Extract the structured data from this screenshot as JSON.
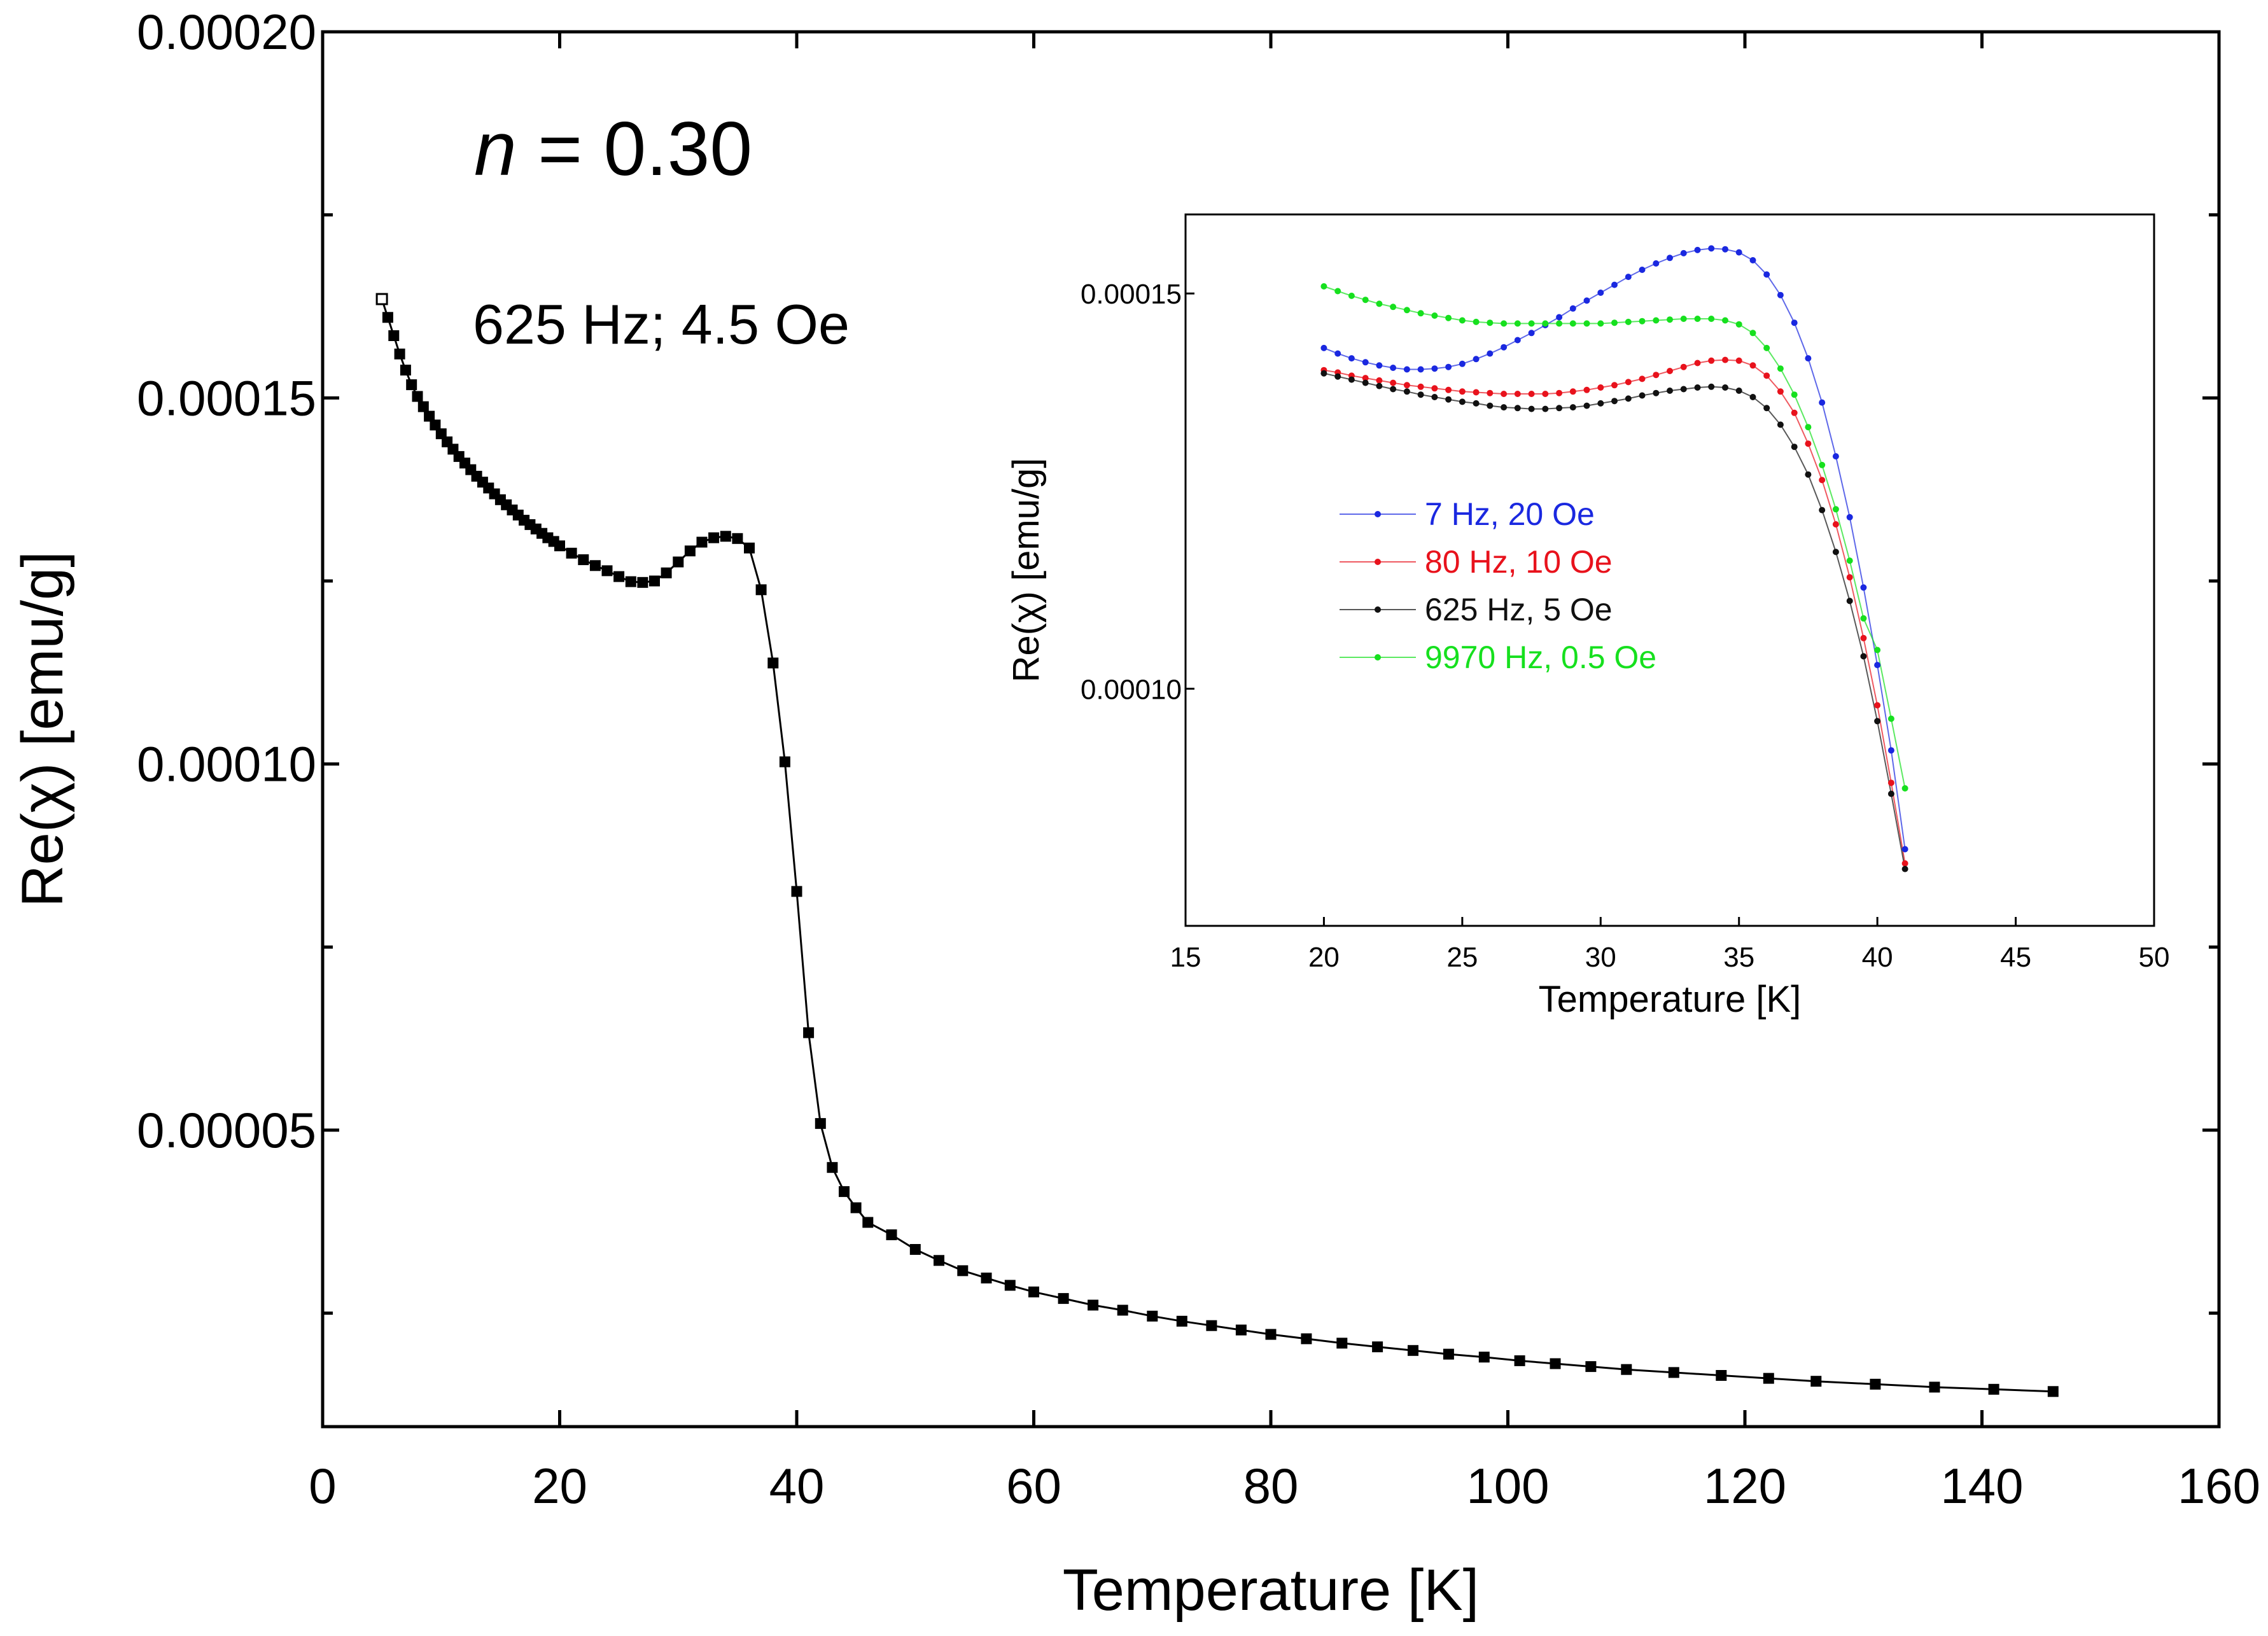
{
  "chart_data": [
    {
      "id": "main",
      "type": "line",
      "annotation_n_var": "n",
      "annotation_n_value": " = 0.30",
      "annotation_conditions": "625 Hz; 4.5 Oe",
      "xlabel": "Temperature [K]",
      "ylabel": "Re(χ) [emu/g]",
      "xlim": [
        0,
        160
      ],
      "ylim": [
        9.5e-06,
        0.0002
      ],
      "xticks": [
        0,
        20,
        40,
        60,
        80,
        100,
        120,
        140,
        160
      ],
      "xtick_labels": [
        "0",
        "20",
        "40",
        "60",
        "80",
        "100",
        "120",
        "140",
        "160"
      ],
      "yticks": [
        5e-05,
        0.0001,
        0.00015,
        0.0002
      ],
      "ytick_labels": [
        "0.00005",
        "0.00010",
        "0.00015",
        "0.00020"
      ],
      "yminor_ticks": [
        2.5e-05,
        7.5e-05,
        0.000125,
        0.000175
      ],
      "series": [
        {
          "name": "625 Hz; 4.5 Oe",
          "color": "#000000",
          "marker": "square",
          "x": [
            5,
            5.5,
            6,
            6.5,
            7,
            7.5,
            8,
            8.5,
            9,
            9.5,
            10,
            10.5,
            11,
            11.5,
            12,
            12.5,
            13,
            13.5,
            14,
            14.5,
            15,
            15.5,
            16,
            16.5,
            17,
            17.5,
            18,
            18.5,
            19,
            19.5,
            20,
            21,
            22,
            23,
            24,
            25,
            26,
            27,
            28,
            29,
            30,
            31,
            32,
            33,
            34,
            35,
            36,
            37,
            38,
            39,
            40,
            41,
            42,
            43,
            44,
            45,
            46,
            48,
            50,
            52,
            54,
            56,
            58,
            60,
            62.5,
            65,
            67.5,
            70,
            72.5,
            75,
            77.5,
            80,
            83,
            86,
            89,
            92,
            95,
            98,
            101,
            104,
            107,
            110,
            114,
            118,
            122,
            126,
            131,
            136,
            141,
            146
          ],
          "y": [
            0.0001635,
            0.000161,
            0.0001585,
            0.000156,
            0.0001538,
            0.0001518,
            0.0001502,
            0.0001488,
            0.0001475,
            0.0001463,
            0.0001451,
            0.000144,
            0.000143,
            0.000142,
            0.0001411,
            0.0001402,
            0.0001393,
            0.0001385,
            0.0001377,
            0.0001369,
            0.0001361,
            0.0001354,
            0.0001347,
            0.000134,
            0.0001333,
            0.0001327,
            0.0001321,
            0.0001315,
            0.0001309,
            0.0001304,
            0.0001298,
            0.0001288,
            0.0001279,
            0.0001271,
            0.0001264,
            0.0001256,
            0.0001249,
            0.0001248,
            0.000125,
            0.0001261,
            0.0001276,
            0.0001291,
            0.0001303,
            0.0001309,
            0.0001311,
            0.0001308,
            0.0001295,
            0.0001238,
            0.0001138,
            0.0001003,
            8.26e-05,
            6.33e-05,
            5.09e-05,
            4.49e-05,
            4.16e-05,
            3.94e-05,
            3.74e-05,
            3.57e-05,
            3.37e-05,
            3.22e-05,
            3.08e-05,
            2.98e-05,
            2.88e-05,
            2.79e-05,
            2.7e-05,
            2.61e-05,
            2.54e-05,
            2.46e-05,
            2.39e-05,
            2.33e-05,
            2.27e-05,
            2.21e-05,
            2.15e-05,
            2.09e-05,
            2.04e-05,
            1.99e-05,
            1.94e-05,
            1.9e-05,
            1.85e-05,
            1.81e-05,
            1.77e-05,
            1.73e-05,
            1.69e-05,
            1.65e-05,
            1.61e-05,
            1.57e-05,
            1.53e-05,
            1.49e-05,
            1.46e-05,
            1.43e-05
          ]
        }
      ]
    },
    {
      "id": "inset",
      "type": "line",
      "xlabel": "Temperature [K]",
      "ylabel": "Re(χ) [emu/g]",
      "xlim": [
        15,
        50
      ],
      "ylim": [
        7e-05,
        0.00016
      ],
      "xticks": [
        15,
        20,
        25,
        30,
        35,
        40,
        45,
        50
      ],
      "xtick_labels": [
        "15",
        "20",
        "25",
        "30",
        "35",
        "40",
        "45",
        "50"
      ],
      "yticks": [
        0.0001,
        0.00015
      ],
      "ytick_labels": [
        "0.00010",
        "0.00015"
      ],
      "legend_position": "center-left",
      "x": [
        20,
        20.5,
        21,
        21.5,
        22,
        22.5,
        23,
        23.5,
        24,
        24.5,
        25,
        25.5,
        26,
        26.5,
        27,
        27.5,
        28,
        28.5,
        29,
        29.5,
        30,
        30.5,
        31,
        31.5,
        32,
        32.5,
        33,
        33.5,
        34,
        34.5,
        35,
        35.5,
        36,
        36.5,
        37,
        37.5,
        38,
        38.5,
        39,
        39.5,
        40,
        40.5,
        41
      ],
      "series": [
        {
          "name": "7 Hz, 20 Oe",
          "color": "#1a28e0",
          "values": [
            0.0001431,
            0.0001424,
            0.0001418,
            0.0001413,
            0.0001409,
            0.0001406,
            0.0001404,
            0.0001404,
            0.0001405,
            0.0001407,
            0.0001411,
            0.0001417,
            0.0001424,
            0.0001432,
            0.0001441,
            0.000145,
            0.000146,
            0.000147,
            0.0001481,
            0.0001491,
            0.0001501,
            0.0001511,
            0.0001521,
            0.000153,
            0.0001538,
            0.0001545,
            0.0001551,
            0.0001555,
            0.0001557,
            0.0001556,
            0.0001552,
            0.0001542,
            0.0001524,
            0.0001498,
            0.0001463,
            0.0001418,
            0.0001362,
            0.0001294,
            0.0001217,
            0.0001128,
            0.000103,
            9.22e-05,
            7.97e-05
          ]
        },
        {
          "name": "80 Hz, 10 Oe",
          "color": "#e8121c",
          "values": [
            0.0001403,
            0.00014,
            0.0001396,
            0.0001393,
            0.000139,
            0.0001387,
            0.0001384,
            0.0001382,
            0.000138,
            0.0001378,
            0.0001376,
            0.0001375,
            0.0001374,
            0.0001373,
            0.0001373,
            0.0001373,
            0.0001373,
            0.0001374,
            0.0001376,
            0.0001378,
            0.0001381,
            0.0001384,
            0.0001388,
            0.0001392,
            0.0001397,
            0.0001402,
            0.0001407,
            0.0001412,
            0.0001415,
            0.0001416,
            0.0001415,
            0.0001409,
            0.0001396,
            0.0001376,
            0.0001349,
            0.000131,
            0.0001264,
            0.0001208,
            0.0001141,
            0.0001064,
            9.79e-05,
            8.81e-05,
            7.79e-05
          ]
        },
        {
          "name": "625 Hz, 5 Oe",
          "color": "#111111",
          "values": [
            0.0001399,
            0.0001395,
            0.0001391,
            0.0001387,
            0.0001383,
            0.0001379,
            0.0001376,
            0.0001372,
            0.0001369,
            0.0001366,
            0.0001363,
            0.0001361,
            0.0001358,
            0.0001356,
            0.0001355,
            0.0001354,
            0.0001354,
            0.0001355,
            0.0001356,
            0.0001358,
            0.0001361,
            0.0001364,
            0.0001367,
            0.0001371,
            0.0001374,
            0.0001377,
            0.0001379,
            0.0001381,
            0.0001382,
            0.0001381,
            0.0001377,
            0.0001369,
            0.0001355,
            0.0001334,
            0.0001306,
            0.0001271,
            0.0001226,
            0.0001173,
            0.0001111,
            0.0001041,
            9.59e-05,
            8.67e-05,
            7.72e-05
          ]
        },
        {
          "name": "9970 Hz, 0.5 Oe",
          "color": "#16e01e",
          "values": [
            0.0001509,
            0.0001503,
            0.0001497,
            0.0001492,
            0.0001487,
            0.0001483,
            0.0001479,
            0.0001475,
            0.0001472,
            0.0001469,
            0.0001466,
            0.0001464,
            0.0001463,
            0.0001462,
            0.0001462,
            0.0001462,
            0.0001462,
            0.0001462,
            0.0001462,
            0.0001462,
            0.0001462,
            0.0001463,
            0.0001464,
            0.0001465,
            0.0001466,
            0.0001467,
            0.0001468,
            0.0001468,
            0.0001468,
            0.0001466,
            0.0001461,
            0.000145,
            0.0001431,
            0.0001405,
            0.0001372,
            0.0001331,
            0.0001283,
            0.0001227,
            0.0001162,
            0.0001089,
            0.0001049,
            9.62e-05,
            8.74e-05
          ]
        }
      ]
    }
  ]
}
